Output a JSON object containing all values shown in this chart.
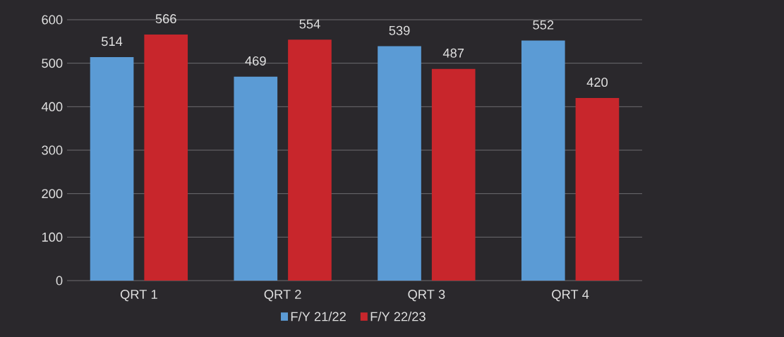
{
  "chart_data": {
    "type": "bar",
    "categories": [
      "QRT 1",
      "QRT 2",
      "QRT 3",
      "QRT 4"
    ],
    "series": [
      {
        "name": "F/Y 21/22",
        "color": "#5b9bd5",
        "values": [
          514,
          469,
          539,
          552
        ]
      },
      {
        "name": "F/Y 22/23",
        "color": "#c8262c",
        "values": [
          566,
          554,
          487,
          420
        ]
      }
    ],
    "ylim": [
      0,
      600
    ],
    "yticks": [
      0,
      100,
      200,
      300,
      400,
      500,
      600
    ],
    "grid": "y",
    "legend": "bottom",
    "data_labels": true
  }
}
